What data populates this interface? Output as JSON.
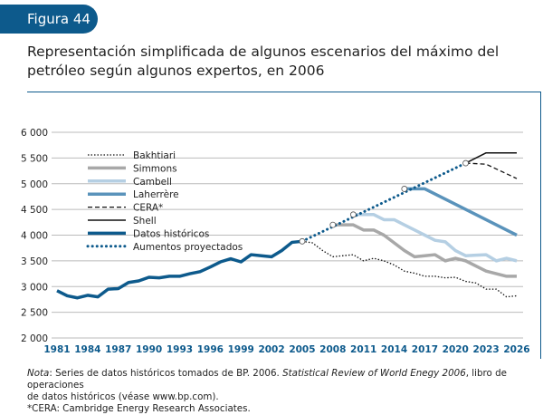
{
  "figure_label": "Figura 44",
  "title": "Representación simplificada de algunos escenarios del máximo del petróleo según algunos expertos, en 2006",
  "note": {
    "line1_a": "Nota",
    "line1_b": ": Series de datos históricos tomados de BP. 2006. ",
    "line1_c": "Statistical Review of World Enegy 2006",
    "line1_d": ", libro de operaciones",
    "line2": "de datos históricos (véase www.bp.com).",
    "line3": "*CERA: Cambridge Energy Research Associates."
  },
  "colors": {
    "accent": "#0d5a8c",
    "simmons": "#a8a8a8",
    "cambell": "#b5cfe3",
    "laherrere": "#5a93bb",
    "black": "#111111"
  },
  "chart_data": {
    "type": "line",
    "title": "",
    "xlabel": "",
    "ylabel": "",
    "ylim": [
      2000,
      6000
    ],
    "xlim": [
      1981,
      2026
    ],
    "yticks": [
      2000,
      2500,
      3000,
      3500,
      4000,
      4500,
      5000,
      5500,
      6000
    ],
    "ytick_labels": [
      "2 000",
      "2 500",
      "3 000",
      "3 500",
      "4 000",
      "4 500",
      "5 000",
      "5 500",
      "6 000"
    ],
    "xticks": [
      1981,
      1984,
      1987,
      1990,
      1993,
      1996,
      1999,
      2002,
      2005,
      2008,
      2011,
      2014,
      2017,
      2020,
      2023,
      2026
    ],
    "grid": "horizontal",
    "legend_placement": "top-left",
    "series": [
      {
        "name": "Bakhtiari",
        "style": "dotted",
        "color": "#111111",
        "x": [
          2005,
          2006,
          2007,
          2008,
          2009,
          2010,
          2011,
          2012,
          2013,
          2014,
          2015,
          2016,
          2017,
          2018,
          2019,
          2020,
          2021,
          2022,
          2023,
          2024,
          2025,
          2026
        ],
        "y": [
          3880,
          3850,
          3700,
          3580,
          3600,
          3620,
          3500,
          3550,
          3500,
          3420,
          3300,
          3260,
          3200,
          3200,
          3170,
          3180,
          3100,
          3070,
          2950,
          2950,
          2800,
          2820
        ]
      },
      {
        "name": "Simmons",
        "style": "solid-thick",
        "color": "#a8a8a8",
        "x": [
          2008,
          2009,
          2010,
          2011,
          2012,
          2013,
          2014,
          2015,
          2016,
          2017,
          2018,
          2019,
          2020,
          2021,
          2022,
          2023,
          2024,
          2025,
          2026
        ],
        "y": [
          4200,
          4200,
          4200,
          4100,
          4100,
          4000,
          3850,
          3700,
          3580,
          3600,
          3620,
          3500,
          3550,
          3500,
          3400,
          3300,
          3250,
          3200,
          3200
        ]
      },
      {
        "name": "Cambell",
        "style": "solid-thick",
        "color": "#b5cfe3",
        "x": [
          2010,
          2011,
          2012,
          2013,
          2014,
          2015,
          2016,
          2017,
          2018,
          2019,
          2020,
          2021,
          2022,
          2023,
          2024,
          2025,
          2026
        ],
        "y": [
          4400,
          4400,
          4400,
          4300,
          4300,
          4200,
          4100,
          4000,
          3900,
          3870,
          3700,
          3600,
          3610,
          3620,
          3500,
          3550,
          3500
        ]
      },
      {
        "name": "Laherrère",
        "style": "solid-thick",
        "color": "#5a93bb",
        "x": [
          2015,
          2016,
          2017,
          2026
        ],
        "y": [
          4900,
          4900,
          4900,
          4000
        ]
      },
      {
        "name": "CERA*",
        "style": "dashed",
        "color": "#111111",
        "x": [
          2021,
          2023,
          2026
        ],
        "y": [
          5400,
          5380,
          5100
        ]
      },
      {
        "name": "Shell",
        "style": "solid",
        "color": "#111111",
        "x": [
          2021,
          2023,
          2026
        ],
        "y": [
          5400,
          5600,
          5600
        ]
      },
      {
        "name": "Datos históricos",
        "style": "solid-thick",
        "color": "#0d5a8c",
        "x": [
          1981,
          1982,
          1983,
          1984,
          1985,
          1986,
          1987,
          1988,
          1989,
          1990,
          1991,
          1992,
          1993,
          1994,
          1995,
          1996,
          1997,
          1998,
          1999,
          2000,
          2001,
          2002,
          2003,
          2004,
          2005
        ],
        "y": [
          2920,
          2820,
          2780,
          2830,
          2800,
          2950,
          2960,
          3080,
          3110,
          3180,
          3170,
          3200,
          3200,
          3250,
          3290,
          3380,
          3480,
          3540,
          3480,
          3620,
          3600,
          3580,
          3700,
          3860,
          3880
        ]
      },
      {
        "name": "Aumentos proyectados",
        "style": "dotted-thick",
        "color": "#0d5a8c",
        "x": [
          2005,
          2021
        ],
        "y": [
          3880,
          5400
        ]
      }
    ],
    "markers": [
      {
        "x": 2005,
        "y": 3880
      },
      {
        "x": 2008,
        "y": 4200
      },
      {
        "x": 2010,
        "y": 4400
      },
      {
        "x": 2015,
        "y": 4900
      },
      {
        "x": 2021,
        "y": 5400
      }
    ]
  }
}
